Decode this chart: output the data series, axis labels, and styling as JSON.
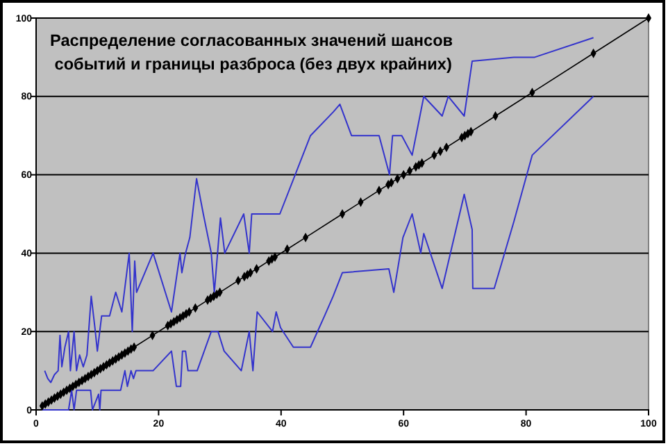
{
  "chart_data": {
    "type": "line",
    "title": "Распределение согласованных значений шансов\n событий и границы разброса (без двух крайних)",
    "xlim": [
      0,
      100
    ],
    "ylim": [
      0,
      100
    ],
    "xticks": [
      0,
      20,
      40,
      60,
      80,
      100
    ],
    "yticks": [
      0,
      20,
      40,
      60,
      80,
      100
    ],
    "grid": "y",
    "series": [
      {
        "color": "#3333cc",
        "marker": "none",
        "x": [
          1.4,
          1.9,
          2.4,
          3,
          3.6,
          3.9,
          4.2,
          4.7,
          5.3,
          5.6,
          6.2,
          6.6,
          7.1,
          7.7,
          8.3,
          9,
          9.6,
          10,
          10.7,
          12,
          13,
          14,
          15.2,
          15.7,
          16.1,
          16.4,
          19.1,
          22.1,
          23.5,
          23.8,
          24.4,
          25.1,
          26.2,
          27.3,
          28.6,
          29.1,
          30.1,
          30.8,
          33.9,
          34.8,
          35.2,
          37.7,
          39.8,
          44.8,
          48.5,
          49.6,
          51.5,
          56,
          57.7,
          58.2,
          59.7,
          61.4,
          63.3,
          66.3,
          67.3,
          69.9,
          71.2,
          78,
          81.4,
          91
        ],
        "values": [
          10,
          8,
          7,
          9,
          10,
          19,
          11,
          16,
          20,
          10,
          20,
          10,
          14,
          11,
          14,
          29,
          21,
          15,
          24,
          24,
          30,
          25,
          40,
          20,
          38,
          30,
          40,
          25,
          40,
          35,
          40,
          44,
          59,
          50,
          40,
          30,
          49,
          40,
          50,
          40,
          50,
          50,
          50,
          70,
          76,
          78,
          70,
          70,
          60,
          70,
          70,
          65,
          80,
          75,
          80,
          75,
          89,
          90,
          90,
          95
        ]
      },
      {
        "color": "#3333cc",
        "marker": "none",
        "x": [
          0.9,
          4.3,
          5.3,
          5.8,
          6.2,
          6.6,
          8.9,
          9.2,
          10.2,
          10.4,
          10.6,
          13.8,
          14.5,
          14.9,
          15.5,
          15.9,
          16.3,
          19.1,
          22.1,
          22.9,
          23.6,
          23.9,
          24.4,
          24.8,
          26.3,
          28.6,
          29.7,
          30.7,
          33.5,
          34.8,
          35.4,
          36.1,
          38.6,
          39.2,
          39.9,
          42,
          44.8,
          47.1,
          48.5,
          50,
          57.6,
          58.4,
          59.9,
          61.4,
          62.8,
          63.3,
          66.3,
          69.9,
          71.2,
          71.3,
          74.8,
          78,
          81,
          91
        ],
        "values": [
          0,
          0,
          0,
          5,
          0,
          5,
          5,
          0,
          4,
          0,
          5,
          5,
          10,
          6,
          10,
          8,
          10,
          10,
          15,
          6,
          6,
          15,
          15,
          10,
          10,
          20,
          20,
          15,
          10,
          20,
          10,
          25,
          20,
          25,
          21,
          16,
          16,
          24,
          29,
          35,
          36,
          30,
          44,
          50,
          40,
          45,
          31,
          55,
          46,
          31,
          31,
          48,
          65,
          80
        ]
      },
      {
        "color": "#000000",
        "marker": "diamond",
        "x": [
          1,
          1.5,
          2,
          2.5,
          3,
          3.5,
          4,
          4.5,
          5,
          5.5,
          6,
          6.5,
          7,
          7.5,
          8,
          8.5,
          9,
          9.5,
          10,
          10.5,
          11,
          11.5,
          12,
          12.5,
          13,
          13.5,
          14,
          14.5,
          15,
          15.5,
          16,
          19,
          21.5,
          22,
          22.5,
          23,
          23.5,
          24,
          24.5,
          25,
          26,
          28,
          28.5,
          29,
          29.5,
          30,
          33,
          34,
          34.5,
          35,
          36,
          38,
          38.5,
          39,
          41,
          44,
          50,
          53,
          56,
          57.5,
          58,
          59,
          60,
          61,
          62,
          62.5,
          63,
          65,
          66,
          67,
          69.5,
          70,
          70.5,
          71,
          75,
          81,
          91,
          100
        ],
        "values": [
          1,
          1.5,
          2,
          2.5,
          3,
          3.5,
          4,
          4.5,
          5,
          5.5,
          6,
          6.5,
          7,
          7.5,
          8,
          8.5,
          9,
          9.5,
          10,
          10.5,
          11,
          11.5,
          12,
          12.5,
          13,
          13.5,
          14,
          14.5,
          15,
          15.5,
          16,
          19,
          21.5,
          22,
          22.5,
          23,
          23.5,
          24,
          24.5,
          25,
          26,
          28,
          28.5,
          29,
          29.5,
          30,
          33,
          34,
          34.5,
          35,
          36,
          38,
          38.5,
          39,
          41,
          44,
          50,
          53,
          56,
          57.5,
          58,
          59,
          60,
          61,
          62,
          62.5,
          63,
          65,
          66,
          67,
          69.5,
          70,
          70.5,
          71,
          75,
          81,
          91,
          100
        ]
      }
    ]
  }
}
